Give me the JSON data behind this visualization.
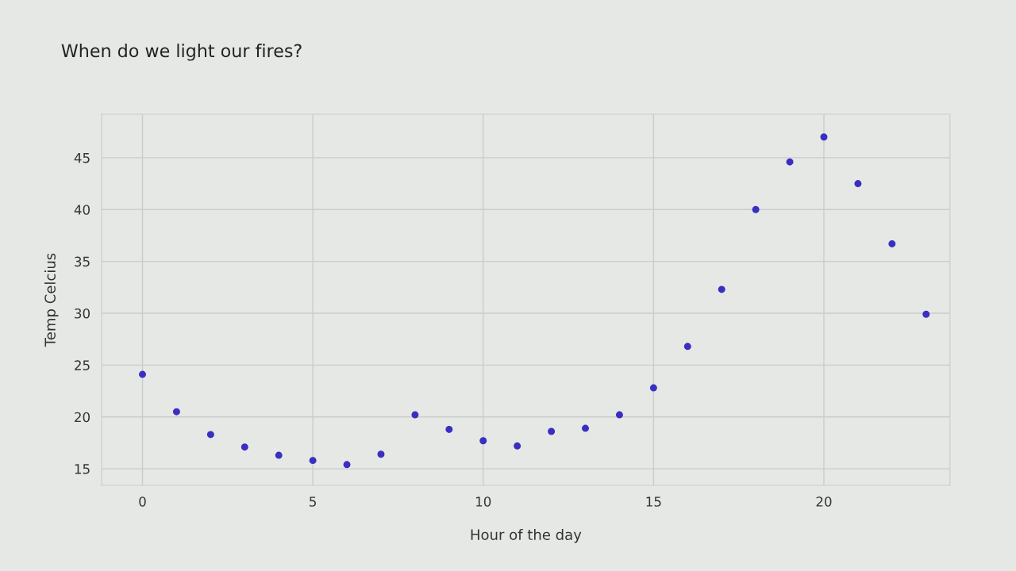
{
  "chart_data": {
    "type": "scatter",
    "title": "When do we light our fires?",
    "xlabel": "Hour of the day",
    "ylabel": "Temp Celcius",
    "x": [
      0,
      1,
      2,
      3,
      4,
      5,
      6,
      7,
      8,
      9,
      10,
      11,
      12,
      13,
      14,
      15,
      16,
      17,
      18,
      19,
      20,
      21,
      22,
      23
    ],
    "series": [
      {
        "color": "#3a2fc0",
        "values": [
          24.1,
          20.5,
          18.3,
          17.1,
          16.3,
          15.8,
          15.4,
          16.4,
          20.2,
          18.8,
          17.7,
          17.2,
          18.6,
          18.9,
          20.2,
          22.8,
          26.8,
          32.3,
          40.0,
          44.6,
          47.0,
          42.5,
          36.7,
          29.9
        ]
      }
    ],
    "xlim": [
      -1.2,
      23.7
    ],
    "ylim": [
      13.4,
      49.2
    ],
    "xticks": [
      0,
      5,
      10,
      15,
      20
    ],
    "yticks": [
      15,
      20,
      25,
      30,
      35,
      40,
      45
    ],
    "grid": true,
    "marker": "circle"
  }
}
